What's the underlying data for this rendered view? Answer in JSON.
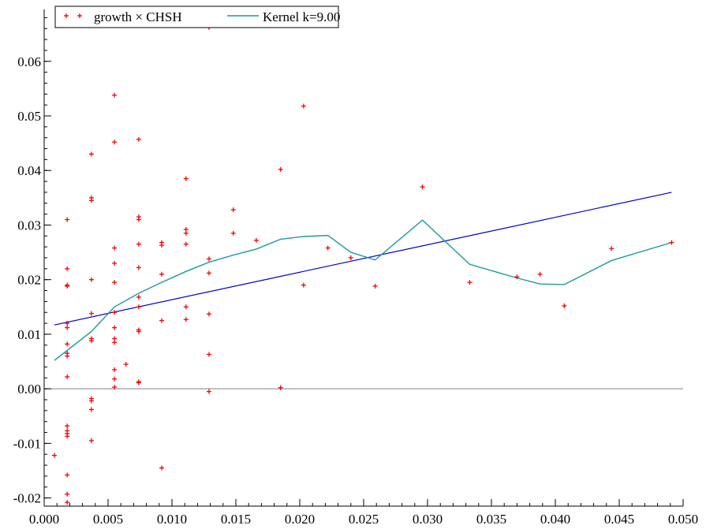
{
  "chart_data": {
    "type": "scatter",
    "title": "",
    "xlabel": "",
    "ylabel": "",
    "xlim": [
      0.0,
      0.05
    ],
    "ylim": [
      -0.0215,
      0.0695
    ],
    "x_ticks": [
      0.0,
      0.005,
      0.01,
      0.015,
      0.02,
      0.025,
      0.03,
      0.035,
      0.04,
      0.045,
      0.05
    ],
    "x_tick_labels": [
      "0.000",
      "0.005",
      "0.010",
      "0.015",
      "0.020",
      "0.025",
      "0.030",
      "0.035",
      "0.040",
      "0.045",
      "0.050"
    ],
    "y_ticks": [
      -0.02,
      -0.01,
      0.0,
      0.01,
      0.02,
      0.03,
      0.04,
      0.05,
      0.06
    ],
    "y_tick_labels": [
      "-0.02",
      "-0.01",
      "0.00",
      "0.01",
      "0.02",
      "0.03",
      "0.04",
      "0.05",
      "0.06"
    ],
    "zero_line": 0.0,
    "grid": false,
    "legend_position": "top-left",
    "colors": {
      "scatter": "#ff0000",
      "kernel": "#1f9a9a",
      "regression": "#0000cc",
      "axis": "#000000",
      "zero_line": "#808080"
    },
    "series": [
      {
        "name": "growth × CHSH",
        "type": "scatter",
        "points": [
          [
            0.0008,
            -0.0122
          ],
          [
            0.0018,
            0.031
          ],
          [
            0.0018,
            0.022
          ],
          [
            0.0018,
            0.019
          ],
          [
            0.0018,
            0.0188
          ],
          [
            0.0018,
            0.012
          ],
          [
            0.0018,
            0.0112
          ],
          [
            0.0018,
            0.0082
          ],
          [
            0.0018,
            0.0065
          ],
          [
            0.0018,
            0.006
          ],
          [
            0.0018,
            0.0022
          ],
          [
            0.0018,
            -0.0068
          ],
          [
            0.0018,
            -0.0077
          ],
          [
            0.0018,
            -0.0082
          ],
          [
            0.0018,
            -0.0087
          ],
          [
            0.0018,
            -0.0158
          ],
          [
            0.0018,
            -0.0193
          ],
          [
            0.0018,
            -0.0208
          ],
          [
            0.0037,
            0.043
          ],
          [
            0.0037,
            0.035
          ],
          [
            0.0037,
            0.0345
          ],
          [
            0.0037,
            0.02
          ],
          [
            0.0037,
            0.0138
          ],
          [
            0.0037,
            0.0092
          ],
          [
            0.0037,
            0.0088
          ],
          [
            0.0037,
            -0.0018
          ],
          [
            0.0037,
            -0.0022
          ],
          [
            0.0037,
            -0.0038
          ],
          [
            0.0037,
            -0.0095
          ],
          [
            0.0055,
            0.0538
          ],
          [
            0.0055,
            0.0452
          ],
          [
            0.0055,
            0.0258
          ],
          [
            0.0055,
            0.023
          ],
          [
            0.0055,
            0.0195
          ],
          [
            0.0055,
            0.014
          ],
          [
            0.0055,
            0.0112
          ],
          [
            0.0055,
            0.0092
          ],
          [
            0.0055,
            0.0085
          ],
          [
            0.0055,
            0.0035
          ],
          [
            0.0055,
            0.0018
          ],
          [
            0.0055,
            0.0003
          ],
          [
            0.0064,
            0.0045
          ],
          [
            0.0074,
            0.0457
          ],
          [
            0.0074,
            0.0315
          ],
          [
            0.0074,
            0.031
          ],
          [
            0.0074,
            0.0265
          ],
          [
            0.0074,
            0.0222
          ],
          [
            0.0074,
            0.0168
          ],
          [
            0.0074,
            0.015
          ],
          [
            0.0074,
            0.0108
          ],
          [
            0.0074,
            0.0105
          ],
          [
            0.0074,
            0.0013
          ],
          [
            0.0074,
            0.0011
          ],
          [
            0.0092,
            0.0268
          ],
          [
            0.0092,
            0.0263
          ],
          [
            0.0092,
            0.021
          ],
          [
            0.0092,
            0.0125
          ],
          [
            0.0092,
            -0.0145
          ],
          [
            0.0111,
            0.0385
          ],
          [
            0.0111,
            0.0292
          ],
          [
            0.0111,
            0.0285
          ],
          [
            0.0111,
            0.0265
          ],
          [
            0.0111,
            0.015
          ],
          [
            0.0111,
            0.0127
          ],
          [
            0.0129,
            0.0662
          ],
          [
            0.0129,
            0.0238
          ],
          [
            0.0129,
            0.0212
          ],
          [
            0.0129,
            0.0137
          ],
          [
            0.0129,
            0.0063
          ],
          [
            0.0129,
            -0.0005
          ],
          [
            0.0148,
            0.0328
          ],
          [
            0.0148,
            0.0285
          ],
          [
            0.0166,
            0.0272
          ],
          [
            0.0185,
            0.0402
          ],
          [
            0.0185,
            0.0002
          ],
          [
            0.0203,
            0.0518
          ],
          [
            0.0203,
            0.019
          ],
          [
            0.0222,
            0.0258
          ],
          [
            0.024,
            0.024
          ],
          [
            0.0259,
            0.0188
          ],
          [
            0.0296,
            0.037
          ],
          [
            0.0333,
            0.0195
          ],
          [
            0.037,
            0.0205
          ],
          [
            0.0388,
            0.021
          ],
          [
            0.0407,
            0.0152
          ],
          [
            0.0444,
            0.0257
          ],
          [
            0.0491,
            0.0268
          ]
        ]
      },
      {
        "name": "Kernel k=9.00",
        "type": "line",
        "points": [
          [
            0.0008,
            0.0052
          ],
          [
            0.0037,
            0.0105
          ],
          [
            0.0055,
            0.015
          ],
          [
            0.0074,
            0.0175
          ],
          [
            0.0092,
            0.0195
          ],
          [
            0.0111,
            0.0215
          ],
          [
            0.0129,
            0.0232
          ],
          [
            0.0148,
            0.0245
          ],
          [
            0.0166,
            0.0256
          ],
          [
            0.0185,
            0.0274
          ],
          [
            0.0203,
            0.0279
          ],
          [
            0.0222,
            0.0281
          ],
          [
            0.024,
            0.025
          ],
          [
            0.0259,
            0.0236
          ],
          [
            0.0296,
            0.0309
          ],
          [
            0.0333,
            0.0228
          ],
          [
            0.037,
            0.0203
          ],
          [
            0.0388,
            0.0192
          ],
          [
            0.0407,
            0.0191
          ],
          [
            0.0444,
            0.0235
          ],
          [
            0.0491,
            0.0268
          ]
        ]
      },
      {
        "type": "line",
        "role": "regression",
        "points": [
          [
            0.0008,
            0.0117
          ],
          [
            0.0491,
            0.036
          ]
        ]
      }
    ]
  }
}
